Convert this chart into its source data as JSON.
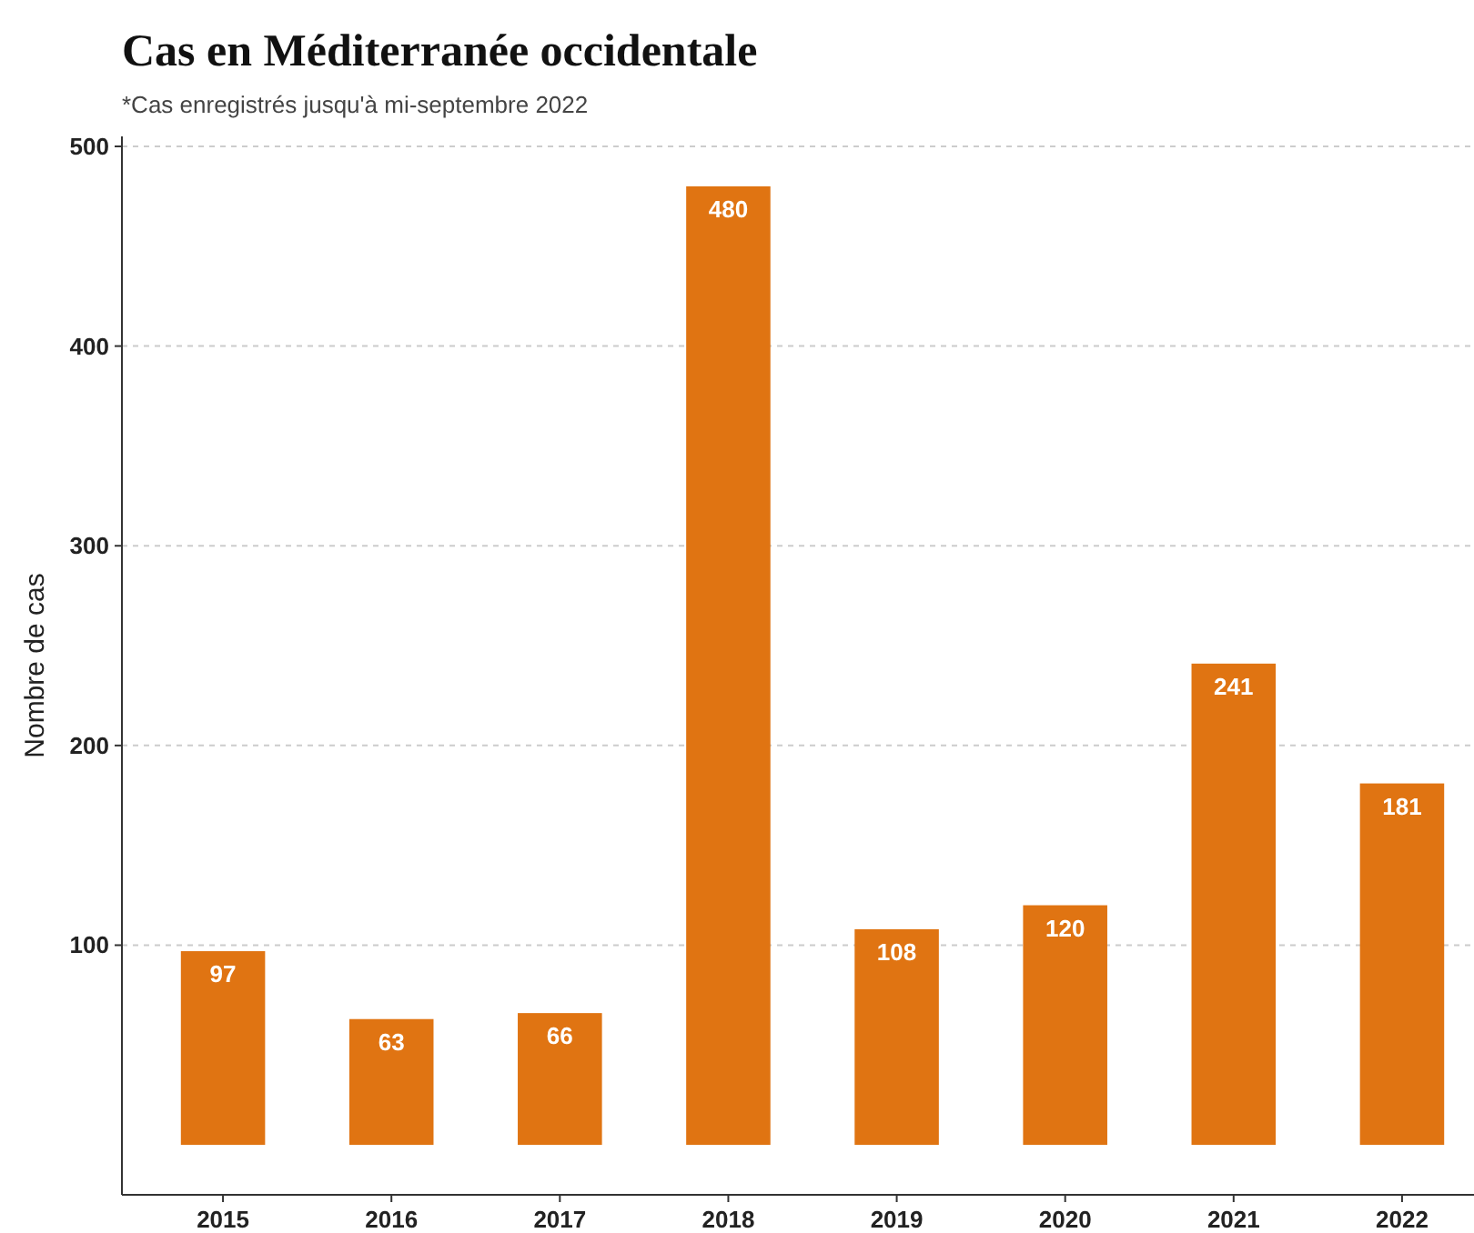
{
  "chart_data": {
    "type": "bar",
    "title": "Cas en Méditerranée occidentale",
    "subtitle": "*Cas enregistrés jusqu'à mi-septembre 2022",
    "ylabel": "Nombre de cas",
    "categories": [
      "2015",
      "2016",
      "2017",
      "2018",
      "2019",
      "2020",
      "2021",
      "2022"
    ],
    "values": [
      97,
      63,
      66,
      480,
      108,
      120,
      241,
      181
    ],
    "color": "#e07412",
    "ylim": [
      -25,
      505
    ],
    "yticks": [
      100,
      200,
      300,
      400,
      500
    ],
    "grid": "y",
    "data_labels": true
  }
}
